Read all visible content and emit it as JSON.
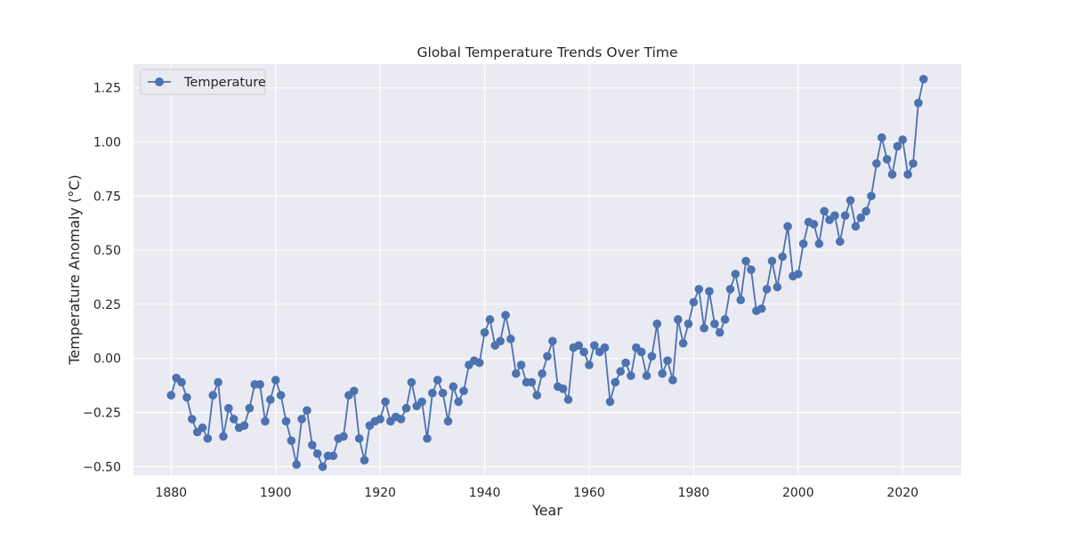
{
  "chart_data": {
    "type": "line",
    "title": "Global Temperature Trends Over Time",
    "xlabel": "Year",
    "ylabel": "Temperature Anomaly (°C)",
    "xlim": [
      1872.8,
      2031.2
    ],
    "ylim": [
      -0.5395,
      1.3595
    ],
    "xticks": [
      1880,
      1900,
      1920,
      1940,
      1960,
      1980,
      2000,
      2020
    ],
    "xtick_labels": [
      "1880",
      "1900",
      "1920",
      "1940",
      "1960",
      "1980",
      "2000",
      "2020"
    ],
    "yticks": [
      -0.5,
      -0.25,
      0.0,
      0.25,
      0.5,
      0.75,
      1.0,
      1.25
    ],
    "ytick_labels": [
      "−0.50",
      "−0.25",
      "0.00",
      "0.25",
      "0.50",
      "0.75",
      "1.00",
      "1.25"
    ],
    "grid": true,
    "legend_position": "top-left",
    "colors": {
      "plot_background": "#eaeaf2",
      "grid": "#ffffff",
      "series": "#4c72b0",
      "text": "#262626"
    },
    "series": [
      {
        "name": "Temperature",
        "marker": "circle",
        "x": [
          1880,
          1881,
          1882,
          1883,
          1884,
          1885,
          1886,
          1887,
          1888,
          1889,
          1890,
          1891,
          1892,
          1893,
          1894,
          1895,
          1896,
          1897,
          1898,
          1899,
          1900,
          1901,
          1902,
          1903,
          1904,
          1905,
          1906,
          1907,
          1908,
          1909,
          1910,
          1911,
          1912,
          1913,
          1914,
          1915,
          1916,
          1917,
          1918,
          1919,
          1920,
          1921,
          1922,
          1923,
          1924,
          1925,
          1926,
          1927,
          1928,
          1929,
          1930,
          1931,
          1932,
          1933,
          1934,
          1935,
          1936,
          1937,
          1938,
          1939,
          1940,
          1941,
          1942,
          1943,
          1944,
          1945,
          1946,
          1947,
          1948,
          1949,
          1950,
          1951,
          1952,
          1953,
          1954,
          1955,
          1956,
          1957,
          1958,
          1959,
          1960,
          1961,
          1962,
          1963,
          1964,
          1965,
          1966,
          1967,
          1968,
          1969,
          1970,
          1971,
          1972,
          1973,
          1974,
          1975,
          1976,
          1977,
          1978,
          1979,
          1980,
          1981,
          1982,
          1983,
          1984,
          1985,
          1986,
          1987,
          1988,
          1989,
          1990,
          1991,
          1992,
          1993,
          1994,
          1995,
          1996,
          1997,
          1998,
          1999,
          2000,
          2001,
          2002,
          2003,
          2004,
          2005,
          2006,
          2007,
          2008,
          2009,
          2010,
          2011,
          2012,
          2013,
          2014,
          2015,
          2016,
          2017,
          2018,
          2019,
          2020,
          2021,
          2022,
          2023,
          2024
        ],
        "values": [
          -0.17,
          -0.09,
          -0.11,
          -0.18,
          -0.28,
          -0.34,
          -0.32,
          -0.37,
          -0.17,
          -0.11,
          -0.36,
          -0.23,
          -0.28,
          -0.32,
          -0.31,
          -0.23,
          -0.12,
          -0.12,
          -0.29,
          -0.19,
          -0.1,
          -0.17,
          -0.29,
          -0.38,
          -0.49,
          -0.28,
          -0.24,
          -0.4,
          -0.44,
          -0.5,
          -0.45,
          -0.45,
          -0.37,
          -0.36,
          -0.17,
          -0.15,
          -0.37,
          -0.47,
          -0.31,
          -0.29,
          -0.28,
          -0.2,
          -0.29,
          -0.27,
          -0.28,
          -0.23,
          -0.11,
          -0.22,
          -0.2,
          -0.37,
          -0.16,
          -0.1,
          -0.16,
          -0.29,
          -0.13,
          -0.2,
          -0.15,
          -0.03,
          -0.01,
          -0.02,
          0.12,
          0.18,
          0.06,
          0.08,
          0.2,
          0.09,
          -0.07,
          -0.03,
          -0.11,
          -0.11,
          -0.17,
          -0.07,
          0.01,
          0.08,
          -0.13,
          -0.14,
          -0.19,
          0.05,
          0.06,
          0.03,
          -0.03,
          0.06,
          0.03,
          0.05,
          -0.2,
          -0.11,
          -0.06,
          -0.02,
          -0.08,
          0.05,
          0.03,
          -0.08,
          0.01,
          0.16,
          -0.07,
          -0.01,
          -0.1,
          0.18,
          0.07,
          0.16,
          0.26,
          0.32,
          0.14,
          0.31,
          0.16,
          0.12,
          0.18,
          0.32,
          0.39,
          0.27,
          0.45,
          0.41,
          0.22,
          0.23,
          0.32,
          0.45,
          0.33,
          0.47,
          0.61,
          0.38,
          0.39,
          0.53,
          0.63,
          0.62,
          0.53,
          0.68,
          0.64,
          0.66,
          0.54,
          0.66,
          0.73,
          0.61,
          0.65,
          0.68,
          0.75,
          0.9,
          1.02,
          0.92,
          0.85,
          0.98,
          1.01,
          0.85,
          0.9,
          1.18,
          1.29
        ]
      }
    ]
  }
}
